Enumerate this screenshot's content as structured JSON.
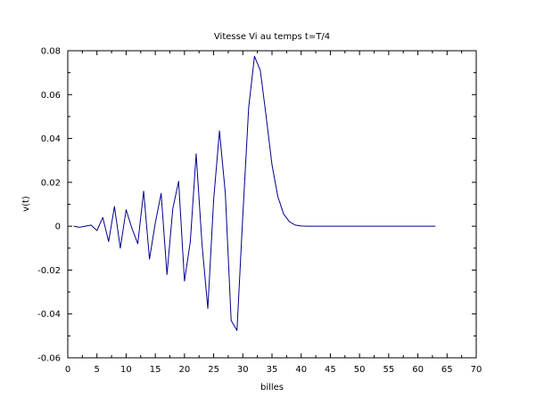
{
  "chart_data": {
    "type": "line",
    "title": "Vitesse Vi au temps t=T/4",
    "xlabel": "billes",
    "ylabel": "v(t)",
    "xlim": [
      0,
      70
    ],
    "ylim": [
      -0.06,
      0.08
    ],
    "grid": false,
    "legend": "none",
    "x_ticks": [
      0,
      5,
      10,
      15,
      20,
      25,
      30,
      35,
      40,
      45,
      50,
      55,
      60,
      65,
      70
    ],
    "y_ticks": [
      -0.06,
      -0.04,
      -0.02,
      0,
      0.02,
      0.04,
      0.06,
      0.08
    ],
    "x_tick_labels": [
      "0",
      "5",
      "10",
      "15",
      "20",
      "25",
      "30",
      "35",
      "40",
      "45",
      "50",
      "55",
      "60",
      "65",
      "70"
    ],
    "y_tick_labels": [
      "-0.06",
      "-0.04",
      "-0.02",
      "0",
      "0.02",
      "0.04",
      "0.06",
      "0.08"
    ],
    "line_color": "#00008b",
    "series": [
      {
        "x": [
          1,
          2,
          3,
          4,
          5,
          6,
          7,
          8,
          9,
          10,
          11,
          12,
          13,
          14,
          15,
          16,
          17,
          18,
          19,
          20,
          21,
          22,
          23,
          24,
          25,
          26,
          27,
          28,
          29,
          30,
          31,
          32,
          33,
          34,
          35,
          36,
          37,
          38,
          39,
          40,
          41,
          42,
          43,
          44,
          45,
          46,
          47,
          48,
          49,
          50,
          51,
          52,
          53,
          54,
          55,
          56,
          57,
          58,
          59,
          60,
          61,
          62,
          63
        ],
        "values": [
          0,
          -0.0005,
          0,
          0.0005,
          -0.002,
          0.004,
          -0.007,
          0.009,
          -0.01,
          0.0075,
          -0.001,
          -0.008,
          0.016,
          -0.015,
          0.0015,
          0.015,
          -0.022,
          0.008,
          0.0205,
          -0.025,
          -0.007,
          0.033,
          -0.008,
          -0.0375,
          0.012,
          0.0435,
          0.015,
          -0.043,
          -0.0475,
          0.005,
          0.054,
          0.0775,
          0.071,
          0.05,
          0.028,
          0.0135,
          0.0055,
          0.002,
          0.0005,
          0.0001,
          0,
          0,
          0,
          0,
          0,
          0,
          0,
          0,
          0,
          0,
          0,
          0,
          0,
          0,
          0,
          0,
          0,
          0,
          0,
          0,
          0,
          0,
          0
        ]
      }
    ]
  }
}
